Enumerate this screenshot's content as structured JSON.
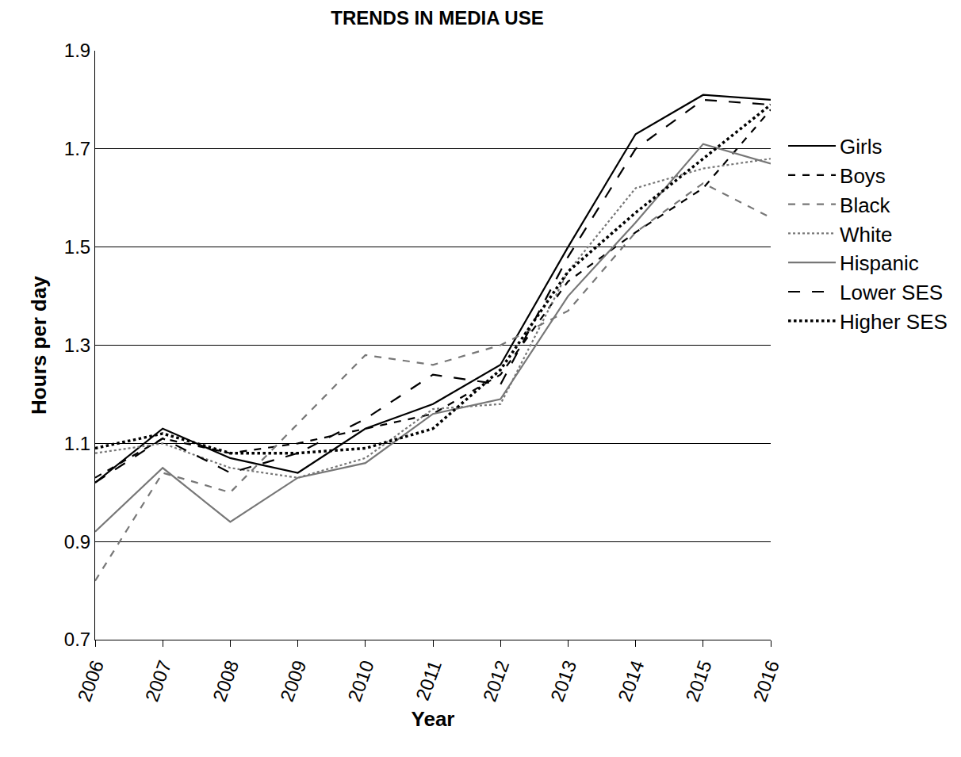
{
  "chart_data": {
    "type": "line",
    "title": "TRENDS IN MEDIA USE",
    "x_label": "Year",
    "y_label": "Hours per day",
    "categories": [
      "2006",
      "2007",
      "2008",
      "2009",
      "2010",
      "2011",
      "2012",
      "2013",
      "2014",
      "2015",
      "2016"
    ],
    "ylim": [
      0.7,
      1.9
    ],
    "yticks": [
      0.7,
      0.9,
      1.1,
      1.3,
      1.5,
      1.7,
      1.9
    ],
    "grid": true,
    "legend": "right",
    "series": [
      {
        "name": "Girls",
        "color": "#000000",
        "line_style": "solid",
        "values": [
          1.02,
          1.13,
          1.07,
          1.04,
          1.13,
          1.18,
          1.26,
          1.5,
          1.73,
          1.81,
          1.8
        ]
      },
      {
        "name": "Boys",
        "color": "#000000",
        "line_style": "dash",
        "values": [
          1.03,
          1.11,
          1.08,
          1.1,
          1.13,
          1.16,
          1.24,
          1.43,
          1.53,
          1.62,
          1.78
        ]
      },
      {
        "name": "Black",
        "color": "#777777",
        "line_style": "dash",
        "values": [
          0.82,
          1.04,
          1.0,
          1.14,
          1.28,
          1.26,
          1.3,
          1.37,
          1.53,
          1.63,
          1.56
        ]
      },
      {
        "name": "White",
        "color": "#777777",
        "line_style": "dot",
        "values": [
          1.08,
          1.1,
          1.05,
          1.03,
          1.07,
          1.17,
          1.18,
          1.45,
          1.62,
          1.66,
          1.68
        ]
      },
      {
        "name": "Hispanic",
        "color": "#777777",
        "line_style": "solid",
        "values": [
          0.92,
          1.05,
          0.94,
          1.03,
          1.06,
          1.16,
          1.19,
          1.4,
          1.55,
          1.71,
          1.67
        ]
      },
      {
        "name": "Lower SES",
        "color": "#000000",
        "line_style": "longdash",
        "values": [
          1.02,
          1.11,
          1.04,
          1.08,
          1.15,
          1.24,
          1.22,
          1.48,
          1.7,
          1.8,
          1.79
        ]
      },
      {
        "name": "Higher SES",
        "color": "#000000",
        "line_style": "dot",
        "values": [
          1.09,
          1.12,
          1.08,
          1.08,
          1.09,
          1.13,
          1.25,
          1.45,
          1.57,
          1.68,
          1.79
        ]
      }
    ]
  }
}
